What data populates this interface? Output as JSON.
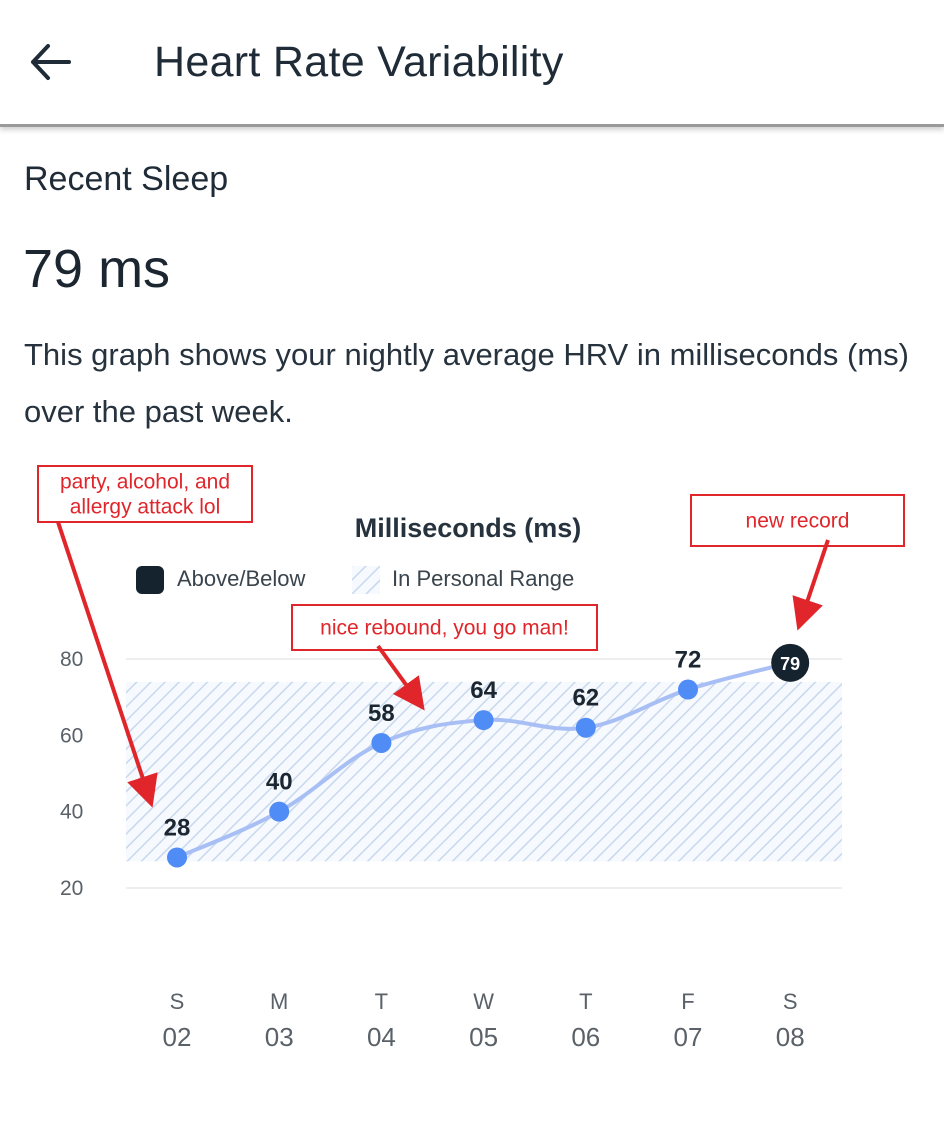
{
  "header": {
    "title": "Heart Rate Variability",
    "back_icon": "arrow-left-icon"
  },
  "summary": {
    "section_label": "Recent Sleep",
    "value": "79 ms",
    "description": "This graph shows your nightly average HRV in milliseconds (ms) over the past week."
  },
  "colors": {
    "line": "#a8bff5",
    "point": "#4f8cf5",
    "highlight_point": "#15232f",
    "range_hatch": "#c9d8ee",
    "annotation": "#e0262a"
  },
  "chart_data": {
    "type": "line",
    "title": "Milliseconds (ms)",
    "legend": [
      {
        "label": "Above/Below",
        "swatch": "solid"
      },
      {
        "label": "In Personal Range",
        "swatch": "hatched"
      }
    ],
    "yticks": [
      20,
      40,
      60,
      80
    ],
    "ylim": [
      20,
      80
    ],
    "personal_range": [
      27,
      74
    ],
    "categories": [
      {
        "day": "S",
        "date": "02"
      },
      {
        "day": "M",
        "date": "03"
      },
      {
        "day": "T",
        "date": "04"
      },
      {
        "day": "W",
        "date": "05"
      },
      {
        "day": "T",
        "date": "06"
      },
      {
        "day": "F",
        "date": "07"
      },
      {
        "day": "S",
        "date": "08"
      }
    ],
    "values": [
      28,
      40,
      58,
      64,
      62,
      72,
      79
    ],
    "highlight_index": 6,
    "annotations": [
      {
        "lines": [
          "party, alcohol, and",
          "allergy attack lol"
        ],
        "target_index": 0
      },
      {
        "lines": [
          "nice rebound, you go man!"
        ],
        "target_index": 2
      },
      {
        "lines": [
          "new record"
        ],
        "target_index": 6
      }
    ]
  }
}
